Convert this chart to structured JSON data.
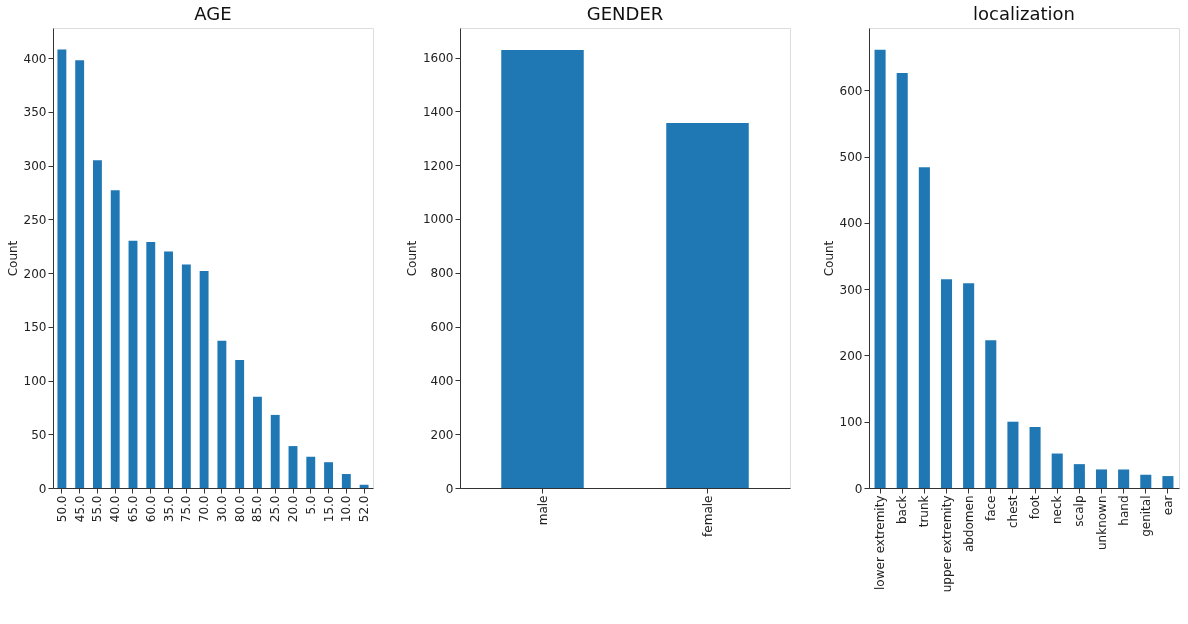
{
  "chart_data": [
    {
      "type": "bar",
      "title": "AGE",
      "ylabel": "Count",
      "categories": [
        "50.0",
        "45.0",
        "55.0",
        "40.0",
        "65.0",
        "60.0",
        "35.0",
        "75.0",
        "70.0",
        "30.0",
        "80.0",
        "85.0",
        "25.0",
        "20.0",
        "5.0",
        "15.0",
        "10.0",
        "52.0"
      ],
      "values": [
        408,
        398,
        305,
        277,
        230,
        229,
        220,
        208,
        202,
        137,
        119,
        85,
        68,
        39,
        29,
        24,
        13,
        3
      ],
      "color": "#1f77b4",
      "ylim": [
        0,
        428
      ],
      "yticks": [
        0,
        50,
        100,
        150,
        200,
        250,
        300,
        350,
        400
      ],
      "grid": false
    },
    {
      "type": "bar",
      "title": "GENDER",
      "ylabel": "Count",
      "categories": [
        "male",
        "female"
      ],
      "values": [
        1628,
        1357
      ],
      "color": "#1f77b4",
      "ylim": [
        0,
        1710
      ],
      "yticks": [
        0,
        200,
        400,
        600,
        800,
        1000,
        1200,
        1400,
        1600
      ],
      "grid": false
    },
    {
      "type": "bar",
      "title": "localization",
      "ylabel": "Count",
      "categories": [
        "lower extremity",
        "back",
        "trunk",
        "upper extremity",
        "abdomen",
        "face",
        "chest",
        "foot",
        "neck",
        "scalp",
        "unknown",
        "hand",
        "genital",
        "ear"
      ],
      "values": [
        661,
        626,
        484,
        315,
        309,
        223,
        100,
        92,
        52,
        36,
        28,
        28,
        20,
        18
      ],
      "color": "#1f77b4",
      "ylim": [
        0,
        694
      ],
      "yticks": [
        0,
        100,
        200,
        300,
        400,
        500,
        600
      ],
      "grid": false
    }
  ]
}
